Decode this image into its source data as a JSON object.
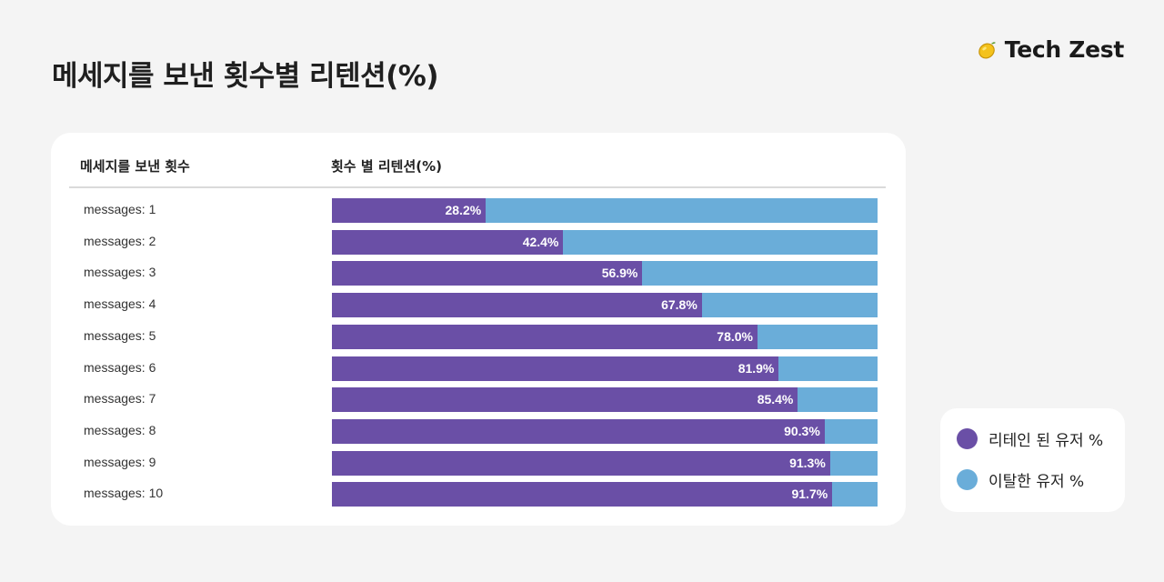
{
  "page": {
    "title": "메세지를 보낸 횟수별 리텐션(%)"
  },
  "brand": {
    "icon": "lemon-icon",
    "name": "Tech Zest"
  },
  "table": {
    "col1_header": "메세지를 보낸 횟수",
    "col2_header": "횟수 별 리텐션(%)"
  },
  "colors": {
    "retained": "#6a4fa6",
    "churned": "#6aadd9"
  },
  "legend": {
    "retained_label": "리테인 된 유저 %",
    "churned_label": "이탈한 유저 %"
  },
  "chart_data": {
    "type": "bar",
    "orientation": "horizontal",
    "stacked": true,
    "categories": [
      "messages: 1",
      "messages: 2",
      "messages: 3",
      "messages: 4",
      "messages: 5",
      "messages: 6",
      "messages: 7",
      "messages: 8",
      "messages: 9",
      "messages: 10"
    ],
    "series": [
      {
        "name": "리테인 된 유저 %",
        "values": [
          28.2,
          42.4,
          56.9,
          67.8,
          78.0,
          81.9,
          85.4,
          90.3,
          91.3,
          91.7
        ]
      },
      {
        "name": "이탈한 유저 %",
        "values": [
          71.8,
          57.6,
          43.1,
          32.2,
          22.0,
          18.1,
          14.6,
          9.7,
          8.7,
          8.3
        ]
      }
    ],
    "value_labels": [
      "28.2%",
      "42.4%",
      "56.9%",
      "67.8%",
      "78.0%",
      "81.9%",
      "85.4%",
      "90.3%",
      "91.3%",
      "91.7%"
    ],
    "xlim": [
      0,
      100
    ],
    "title": "메세지를 보낸 횟수별 리텐션(%)",
    "legend_position": "bottom-right"
  }
}
